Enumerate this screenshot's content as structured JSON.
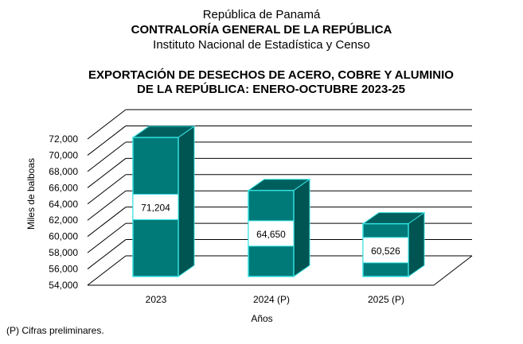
{
  "header": {
    "line1": "República de Panamá",
    "line2": "CONTRALORÍA GENERAL DE LA REPÚBLICA",
    "line3": "Instituto Nacional de Estadística y Censo"
  },
  "footnote": "(P) Cifras  preliminares.",
  "chart_data": {
    "type": "bar",
    "title": "EXPORTACIÓN DE DESECHOS DE ACERO, COBRE Y ALUMINIO DE LA REPÚBLICA: ENERO-OCTUBRE 2023-25",
    "title_lines": [
      "EXPORTACIÓN DE DESECHOS DE ACERO, COBRE Y ALUMINIO",
      "DE LA REPÚBLICA: ENERO-OCTUBRE 2023-25"
    ],
    "categories": [
      "2023",
      "2024 (P)",
      "2025 (P)"
    ],
    "values": [
      71204,
      64650,
      60526
    ],
    "data_labels": [
      "71,204",
      "64,650",
      "60,526"
    ],
    "xlabel": "Años",
    "ylabel": "Miles de balboas",
    "ylim": [
      54000,
      72000
    ],
    "yticks": [
      54000,
      56000,
      58000,
      60000,
      62000,
      64000,
      66000,
      68000,
      70000,
      72000
    ],
    "ytick_labels": [
      "54,000",
      "56,000",
      "58,000",
      "60,000",
      "62,000",
      "64,000",
      "66,000",
      "68,000",
      "70,000",
      "72,000"
    ],
    "grid": true,
    "style": "3d",
    "bar_color": "#007a78",
    "bar_edge_color": "#33e0e0"
  }
}
